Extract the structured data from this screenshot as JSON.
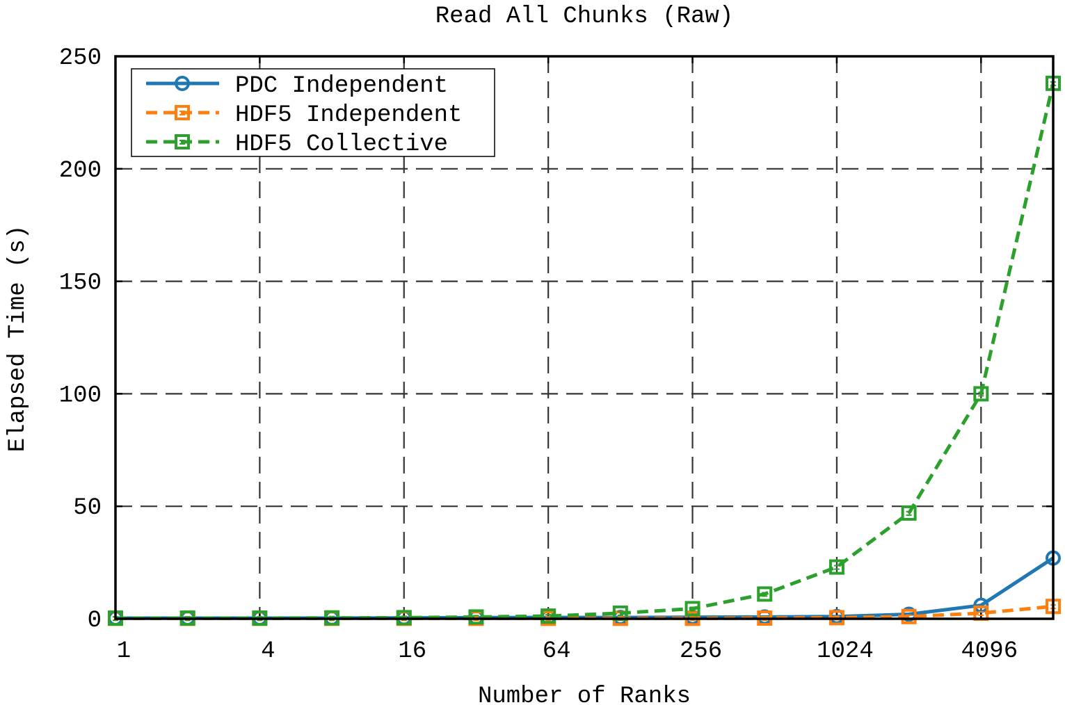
{
  "chart_data": {
    "type": "line",
    "title": "Read All Chunks (Raw)",
    "xlabel": "Number of Ranks",
    "ylabel": "Elapsed Time (s)",
    "x_scale": "log2",
    "x": [
      1,
      2,
      4,
      8,
      16,
      32,
      64,
      128,
      256,
      512,
      1024,
      2048,
      4096,
      8192
    ],
    "x_ticks": [
      1,
      4,
      16,
      64,
      256,
      1024,
      4096
    ],
    "x_tick_labels": [
      "1",
      "4",
      "16",
      "64",
      "256",
      "1024",
      "4096"
    ],
    "xlim": [
      1,
      8192
    ],
    "ylim": [
      0,
      250
    ],
    "y_ticks": [
      0,
      50,
      100,
      150,
      200,
      250
    ],
    "y_tick_labels": [
      "0",
      "50",
      "100",
      "150",
      "200",
      "250"
    ],
    "grid": true,
    "legend_position": "top-left",
    "series": [
      {
        "name": "PDC Independent",
        "color": "#1f77b4",
        "line_style": "solid",
        "marker": "circle",
        "values": [
          0.3,
          0.3,
          0.3,
          0.3,
          0.4,
          0.5,
          0.6,
          0.6,
          0.7,
          0.8,
          1.0,
          2.0,
          6.0,
          27.0
        ]
      },
      {
        "name": "HDF5 Independent",
        "color": "#ff7f0e",
        "line_style": "dashed",
        "marker": "square",
        "values": [
          0.2,
          0.2,
          0.2,
          0.2,
          0.2,
          0.2,
          0.2,
          0.2,
          0.2,
          0.3,
          0.5,
          1.0,
          2.5,
          5.5
        ]
      },
      {
        "name": "HDF5 Collective",
        "color": "#2ca02c",
        "line_style": "dashed",
        "marker": "square",
        "values": [
          0.3,
          0.3,
          0.3,
          0.4,
          0.5,
          0.8,
          1.2,
          2.5,
          4.5,
          11.0,
          23.0,
          47.0,
          100.0,
          238.0
        ]
      }
    ]
  }
}
